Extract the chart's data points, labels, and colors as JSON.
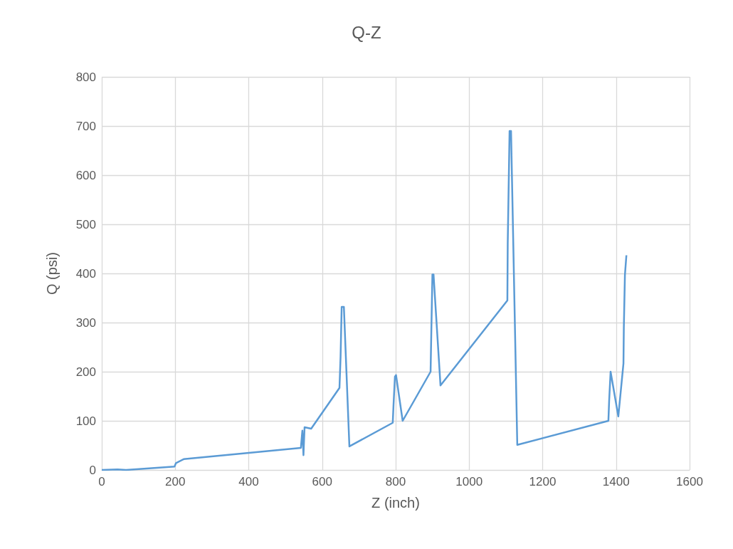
{
  "chart_data": {
    "type": "line",
    "title": "Q-Z",
    "xlabel": "Z (inch)",
    "ylabel": "Q (psi)",
    "x": [
      0,
      43,
      66,
      198,
      202,
      223,
      542,
      546,
      549,
      552,
      570,
      647,
      650,
      653,
      659,
      674,
      792,
      794,
      798,
      801,
      819,
      895,
      897,
      900,
      903,
      922,
      1104,
      1105,
      1110,
      1114,
      1131,
      1379,
      1381,
      1385,
      1406,
      1420,
      1421,
      1424,
      1428
    ],
    "series": [
      {
        "color": "#5b9bd5",
        "values": [
          0,
          1,
          0,
          7,
          14,
          22,
          45,
          80,
          30,
          87,
          84,
          167,
          230,
          332,
          332,
          48,
          96,
          130,
          190,
          193,
          100,
          200,
          280,
          398,
          398,
          172,
          345,
          460,
          690,
          690,
          51,
          100,
          140,
          200,
          109,
          217,
          290,
          397,
          437
        ]
      }
    ],
    "xlim": [
      0,
      1600
    ],
    "xticks": [
      0,
      200,
      400,
      600,
      800,
      1000,
      1200,
      1400,
      1600
    ],
    "ylim": [
      0,
      800
    ],
    "yticks": [
      0,
      100,
      200,
      300,
      400,
      500,
      600,
      700,
      800
    ],
    "grid": true,
    "marker": "none",
    "line_style": "solid"
  }
}
